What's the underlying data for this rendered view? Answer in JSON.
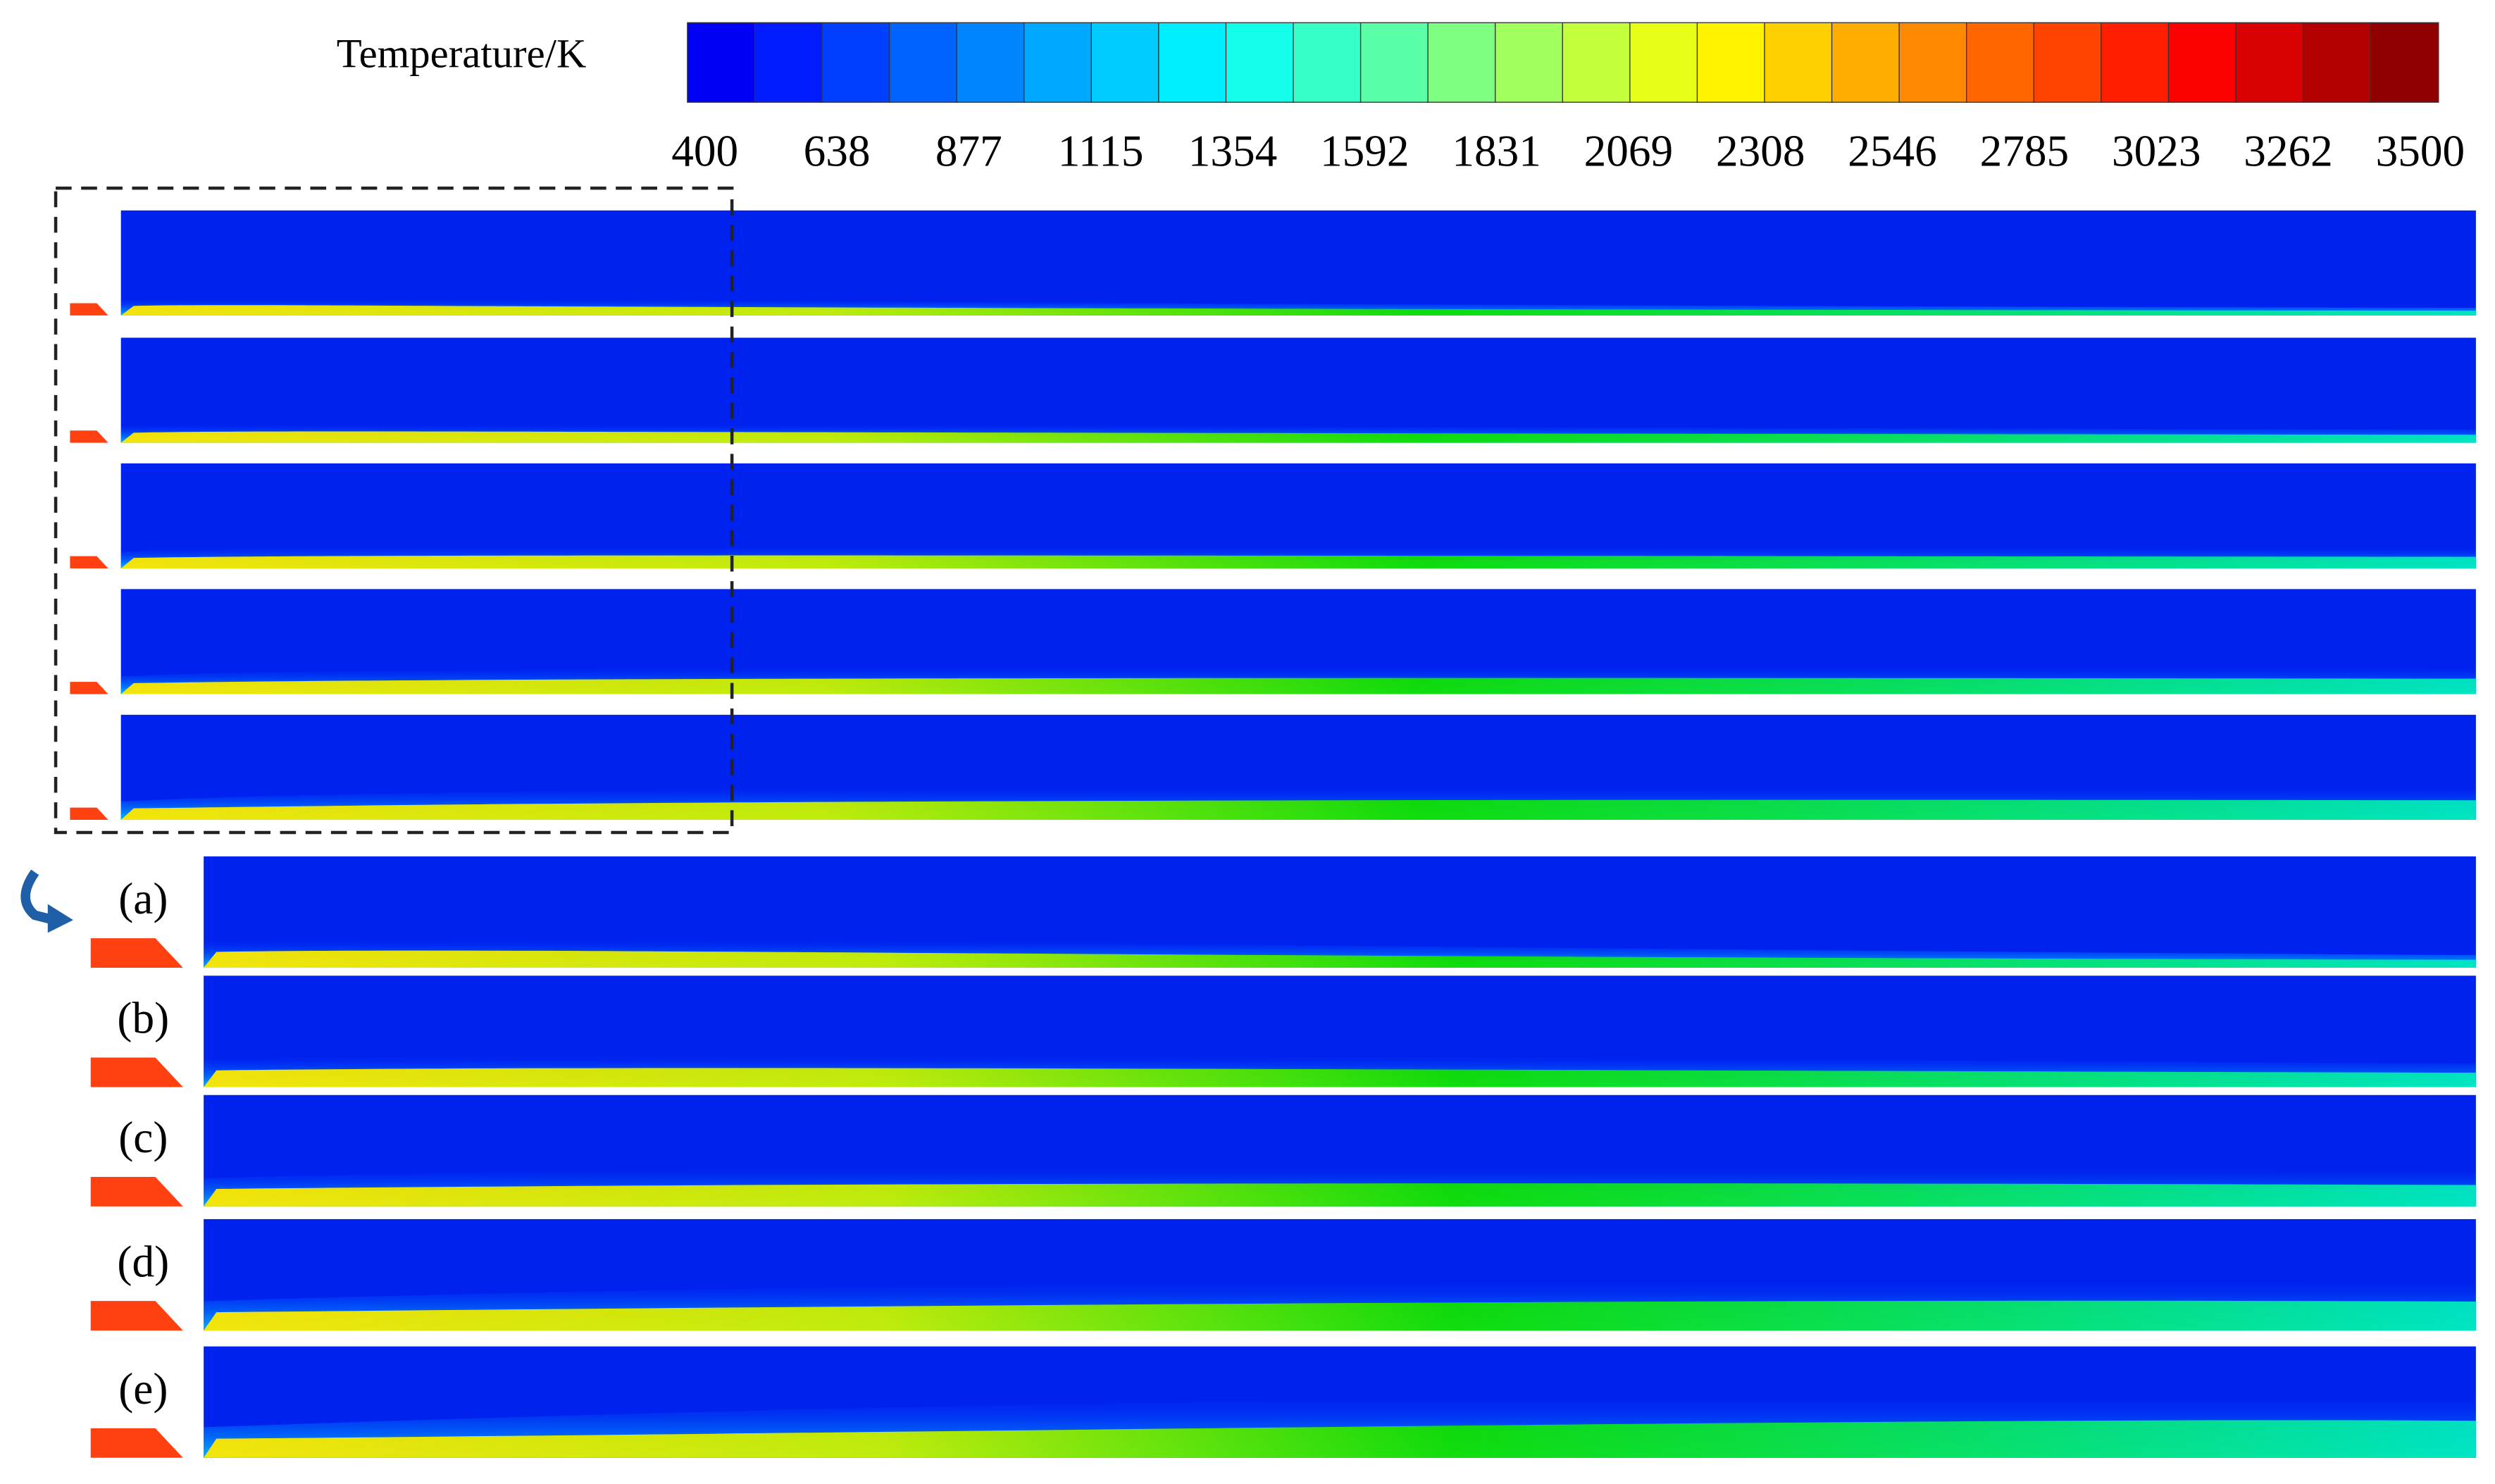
{
  "colorbar": {
    "label": "Temperature/K",
    "ticks": [
      400,
      638,
      877,
      1115,
      1354,
      1592,
      1831,
      2069,
      2308,
      2546,
      2785,
      3023,
      3262,
      3500
    ]
  },
  "panels": {
    "labels": [
      "(a)",
      "(b)",
      "(c)",
      "(d)",
      "(e)"
    ]
  }
}
